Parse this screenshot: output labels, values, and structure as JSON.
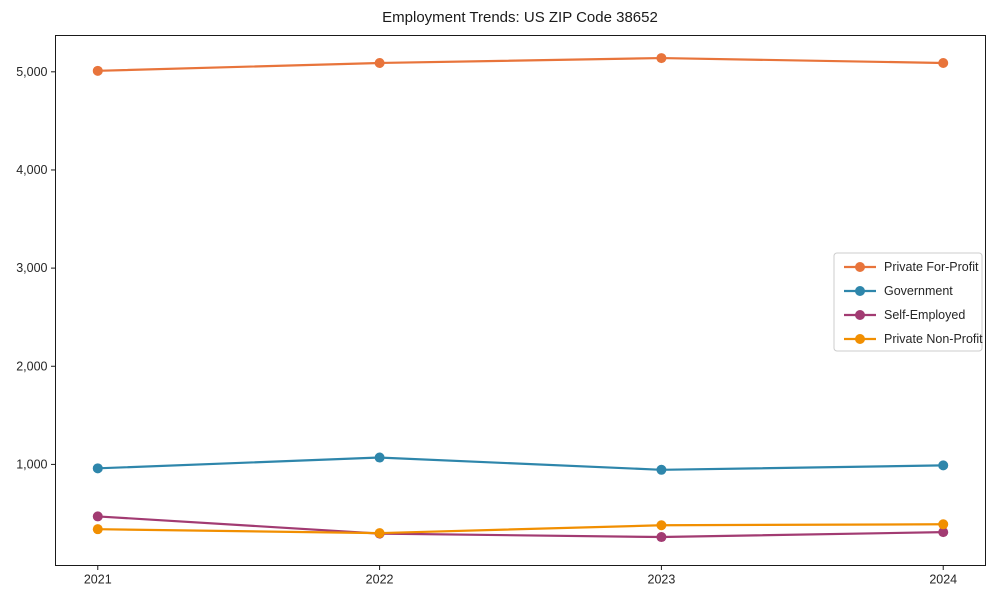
{
  "chart_data": {
    "type": "line",
    "title": "Employment Trends: US ZIP Code 38652",
    "categories": [
      2021,
      2022,
      2023,
      2024
    ],
    "series": [
      {
        "name": "Private For-Profit",
        "color": "#E8743B",
        "values": [
          5010,
          5090,
          5140,
          5090
        ]
      },
      {
        "name": "Government",
        "color": "#2E86AB",
        "values": [
          960,
          1070,
          945,
          990
        ]
      },
      {
        "name": "Self-Employed",
        "color": "#A23B72",
        "values": [
          470,
          295,
          260,
          310
        ]
      },
      {
        "name": "Private Non-Profit",
        "color": "#F18F01",
        "values": [
          340,
          300,
          380,
          390
        ]
      }
    ],
    "xlabel": "",
    "ylabel": "",
    "xlim": [
      2020.85,
      2024.15
    ],
    "ylim": [
      -30,
      5370
    ],
    "xticks": {
      "values": [
        2021,
        2022,
        2023,
        2024
      ],
      "labels": [
        "2021",
        "2022",
        "2023",
        "2024"
      ]
    },
    "yticks": {
      "values": [
        1000,
        2000,
        3000,
        4000,
        5000
      ],
      "labels": [
        "1,000",
        "2,000",
        "3,000",
        "4,000",
        "5,000"
      ]
    },
    "grid": false,
    "legend_position": "center-right",
    "marker": "circle",
    "frame_color": "#1a1a1a",
    "legend_border_color": "#cccccc",
    "background": "#ffffff"
  }
}
